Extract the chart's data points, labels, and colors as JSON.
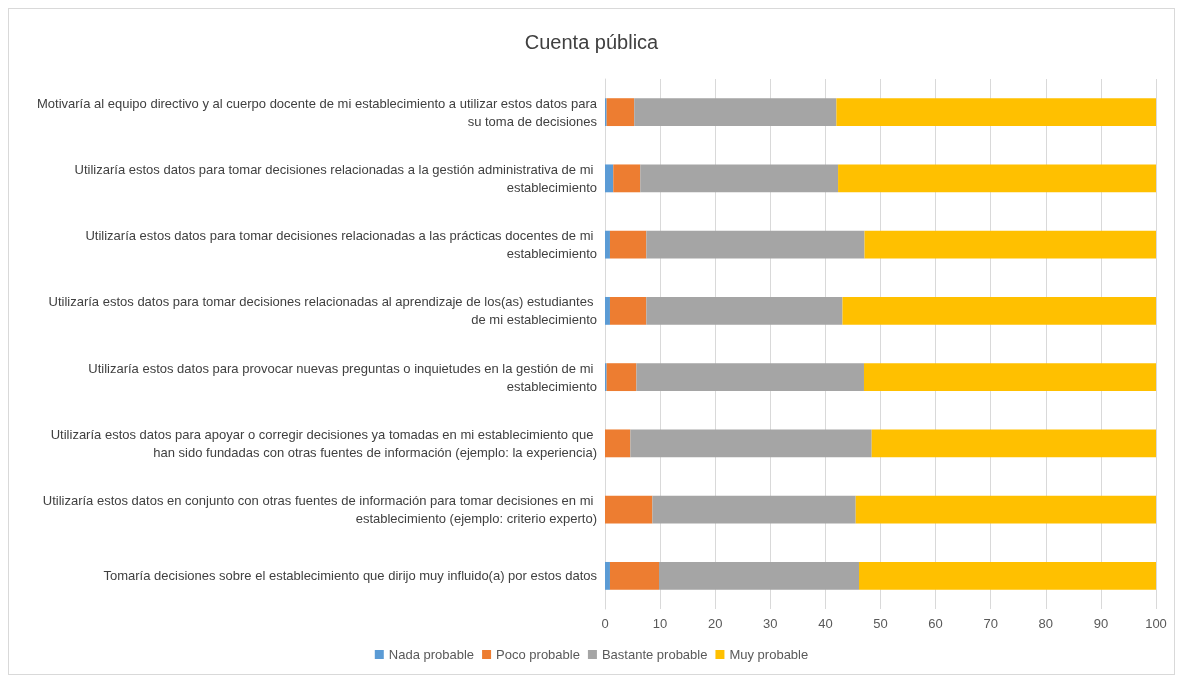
{
  "chart_data": {
    "type": "bar",
    "title": "Cuenta pública",
    "orientation": "horizontal",
    "stacked": true,
    "categories": [
      "Motivaría al equipo directivo y al cuerpo docente de mi establecimiento a utilizar estos datos para su toma de decisiones",
      "Utilizaría estos datos para tomar decisiones relacionadas a la gestión administrativa de mi establecimiento",
      "Utilizaría estos datos para tomar decisiones relacionadas a las prácticas docentes de mi establecimiento",
      "Utilizaría estos datos para tomar decisiones relacionadas al aprendizaje de los(as) estudiantes de mi establecimiento",
      "Utilizaría estos datos para provocar nuevas preguntas o inquietudes en la gestión de mi establecimiento",
      "Utilizaría estos datos para apoyar o corregir decisiones ya tomadas en mi establecimiento que han sido fundadas con otras fuentes de información (ejemplo: la experiencia)",
      "Utilizaría estos datos en conjunto con otras fuentes de información para tomar decisiones en mi establecimiento (ejemplo: criterio experto)",
      "Tomaría decisiones sobre el establecimiento que dirijo muy influido(a) por estos datos"
    ],
    "series": [
      {
        "name": "Nada probable",
        "color": "#5b9bd5",
        "values": [
          0.3,
          1.5,
          0.9,
          0.9,
          0.3,
          0,
          0,
          0.9
        ]
      },
      {
        "name": "Poco probable",
        "color": "#ed7d31",
        "values": [
          5.0,
          4.9,
          6.6,
          6.6,
          5.4,
          4.6,
          8.6,
          8.9
        ]
      },
      {
        "name": "Bastante probable",
        "color": "#a5a5a5",
        "values": [
          36.7,
          35.9,
          39.6,
          35.6,
          41.3,
          43.8,
          36.9,
          36.3
        ]
      },
      {
        "name": "Muy probable",
        "color": "#ffc000",
        "values": [
          58.0,
          57.7,
          52.9,
          56.9,
          53.0,
          51.6,
          54.5,
          53.9
        ]
      }
    ],
    "xlim": [
      0,
      100
    ],
    "xticks": [
      0,
      10,
      20,
      30,
      40,
      50,
      60,
      70,
      80,
      90,
      100
    ],
    "grid": "x",
    "legend": "bottom"
  }
}
